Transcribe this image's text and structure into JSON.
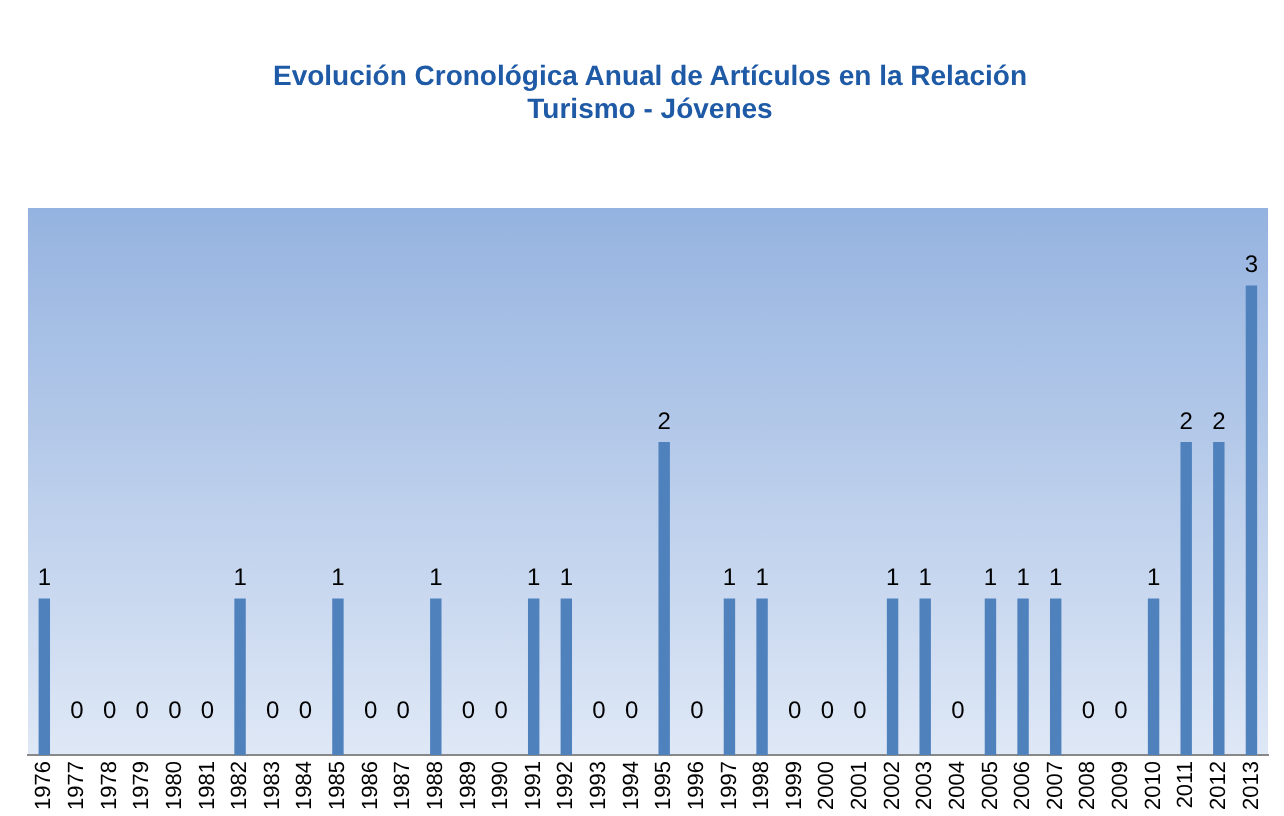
{
  "chart_data": {
    "type": "bar",
    "title": "Evolución Cronológica Anual de Artículos en la Relación\nTurismo - Jóvenes",
    "categories": [
      "1976",
      "1977",
      "1978",
      "1979",
      "1980",
      "1981",
      "1982",
      "1983",
      "1984",
      "1985",
      "1986",
      "1987",
      "1988",
      "1989",
      "1990",
      "1991",
      "1992",
      "1993",
      "1994",
      "1995",
      "1996",
      "1997",
      "1998",
      "1999",
      "2000",
      "2001",
      "2002",
      "2003",
      "2004",
      "2005",
      "2006",
      "2007",
      "2008",
      "2009",
      "2010",
      "2011",
      "2012",
      "2013"
    ],
    "values": [
      1,
      0,
      0,
      0,
      0,
      0,
      1,
      0,
      0,
      1,
      0,
      0,
      1,
      0,
      0,
      1,
      1,
      0,
      0,
      2,
      0,
      1,
      1,
      0,
      0,
      0,
      1,
      1,
      0,
      1,
      1,
      1,
      0,
      0,
      1,
      2,
      2,
      3
    ],
    "color": "#4f81bd",
    "data_labels": true,
    "grid": false,
    "legend": false,
    "tick_labels": "x"
  }
}
